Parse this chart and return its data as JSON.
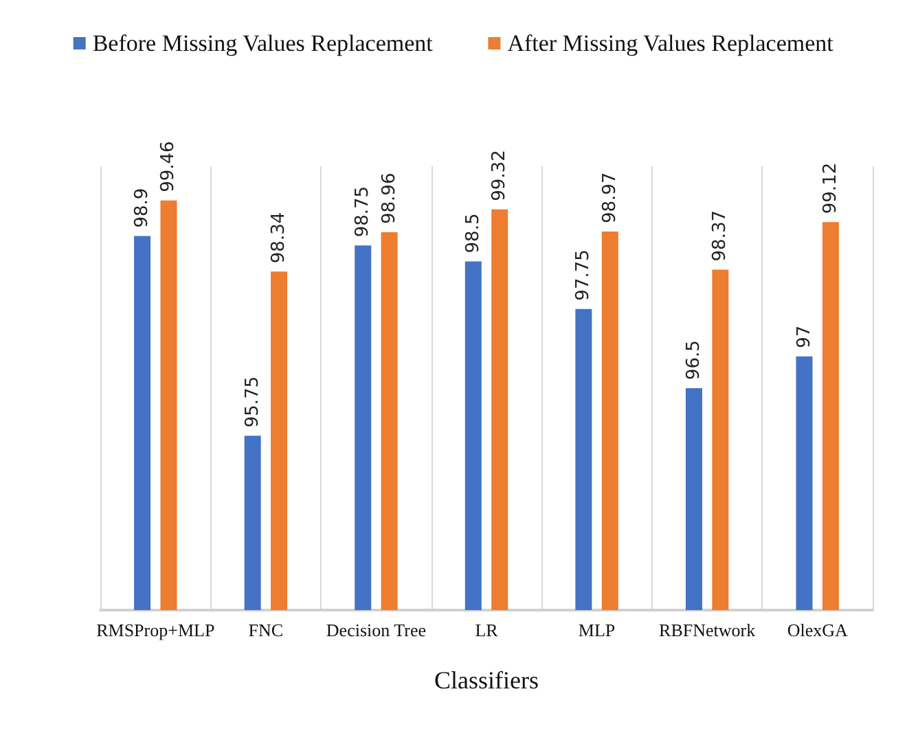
{
  "chart_data": {
    "type": "bar",
    "xlabel": "Classifiers",
    "categories": [
      "RMSProp+MLP",
      "FNC",
      "Decision Tree",
      "LR",
      "MLP",
      "RBFNetwork",
      "OlexGA"
    ],
    "series": [
      {
        "name": "Before Missing Values Replacement",
        "color": "#4472c4",
        "values": [
          98.9,
          95.75,
          98.75,
          98.5,
          97.75,
          96.5,
          97
        ]
      },
      {
        "name": "After Missing Values Replacement",
        "color": "#ed7d31",
        "values": [
          99.46,
          98.34,
          98.96,
          99.32,
          98.97,
          98.37,
          99.12
        ]
      }
    ],
    "ylim": [
      93,
      100
    ],
    "data_labels": true,
    "grid": "x",
    "legend": "top",
    "tick_labels": "x"
  }
}
